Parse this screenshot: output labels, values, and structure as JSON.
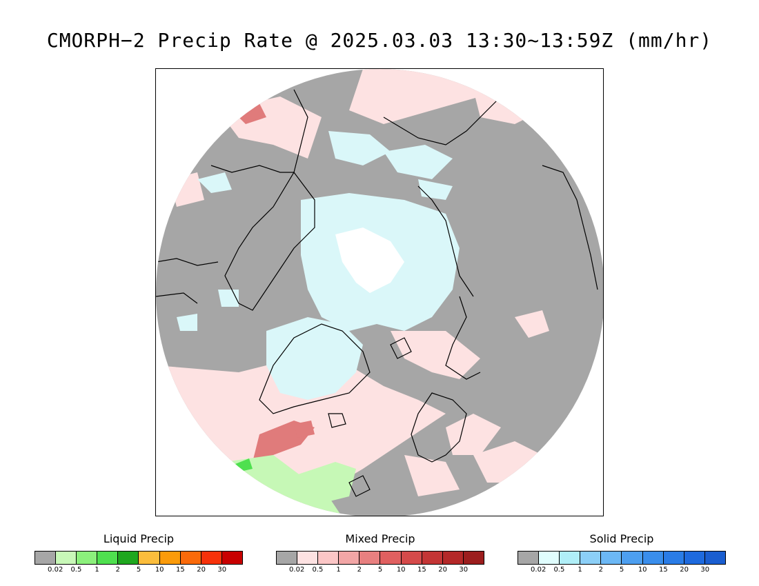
{
  "title": "CMORPH−2 Precip Rate @ 2025.03.03 13:30~13:59Z (mm/hr)",
  "map": {
    "projection": "polar-stereographic-north",
    "colors": {
      "no_precip": "#a6a6a6",
      "snow_light": "#daf7f9",
      "snow_core": "#ffffff",
      "mixed_light": "#fde2e2",
      "mixed_moderate": "#e07b7b",
      "liquid_light": "#c6f8b6",
      "liquid_moderate": "#4fe04f",
      "coastline": "#000000"
    }
  },
  "legends": [
    {
      "title": "Liquid Precip",
      "colors": [
        "#a6a6a6",
        "#c8f8b8",
        "#8cf07c",
        "#4fe04f",
        "#1fa71f",
        "#fbbd3c",
        "#fb9b0a",
        "#fa6a0a",
        "#f7320a",
        "#c80000"
      ],
      "tick_labels": [
        "0.02",
        "0.5",
        "1",
        "2",
        "5",
        "10",
        "15",
        "20",
        "30"
      ]
    },
    {
      "title": "Mixed Precip",
      "colors": [
        "#a6a6a6",
        "#fde2e2",
        "#fbc6c6",
        "#f2a6a6",
        "#e88080",
        "#e06060",
        "#d54a4a",
        "#c43535",
        "#b42828",
        "#9c1e1e"
      ],
      "tick_labels": [
        "0.02",
        "0.5",
        "1",
        "2",
        "5",
        "10",
        "15",
        "20",
        "30"
      ]
    },
    {
      "title": "Solid Precip",
      "colors": [
        "#a6a6a6",
        "#e0fdfd",
        "#b0eef7",
        "#8ccff7",
        "#6cb8f5",
        "#4d9ff0",
        "#3a8eec",
        "#2a7ce6",
        "#1e6ade",
        "#1a5ed0"
      ],
      "tick_labels": [
        "0.02",
        "0.5",
        "1",
        "2",
        "5",
        "10",
        "15",
        "20",
        "30"
      ]
    }
  ]
}
